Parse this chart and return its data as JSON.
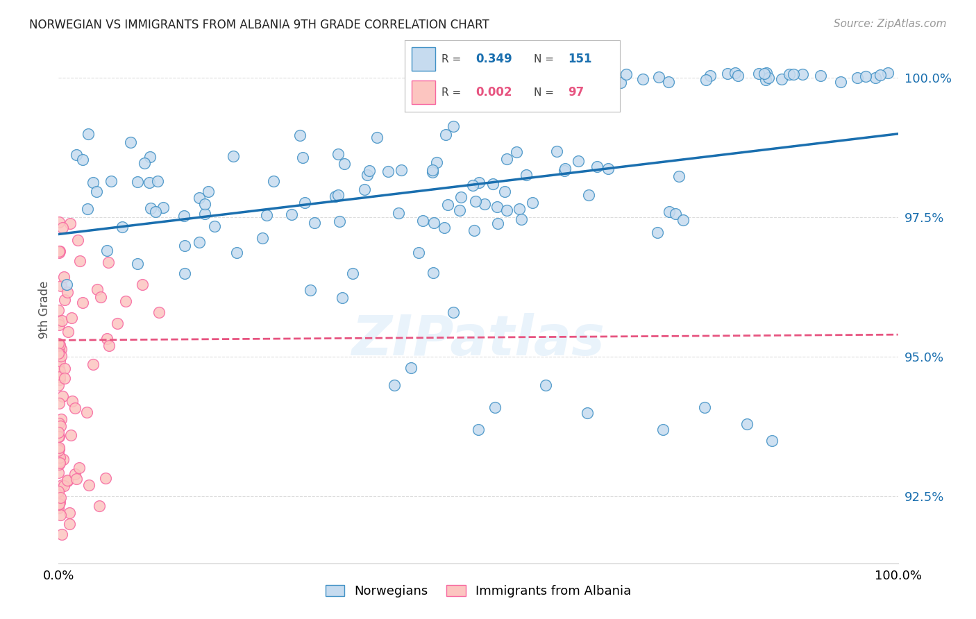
{
  "title": "NORWEGIAN VS IMMIGRANTS FROM ALBANIA 9TH GRADE CORRELATION CHART",
  "source": "Source: ZipAtlas.com",
  "ylabel": "9th Grade",
  "blue_R": "0.349",
  "blue_N": "151",
  "pink_R": "0.002",
  "pink_N": "97",
  "legend_norwegians": "Norwegians",
  "legend_albania": "Immigrants from Albania",
  "blue_color": "#c6dbef",
  "blue_edge_color": "#4292c6",
  "blue_line_color": "#1a6faf",
  "pink_color": "#fcc5c0",
  "pink_edge_color": "#f768a1",
  "pink_line_color": "#e75480",
  "blue_line_x0": 0.0,
  "blue_line_y0": 0.972,
  "blue_line_x1": 1.0,
  "blue_line_y1": 0.99,
  "pink_line_x0": 0.0,
  "pink_line_y0": 0.953,
  "pink_line_x1": 1.0,
  "pink_line_y1": 0.954,
  "xmin": 0.0,
  "xmax": 1.0,
  "ymin": 0.913,
  "ymax": 1.004,
  "yticks": [
    0.925,
    0.95,
    0.975,
    1.0
  ],
  "ytick_labels": [
    "92.5%",
    "95.0%",
    "97.5%",
    "100.0%"
  ],
  "background_color": "#ffffff",
  "grid_color": "#dddddd"
}
